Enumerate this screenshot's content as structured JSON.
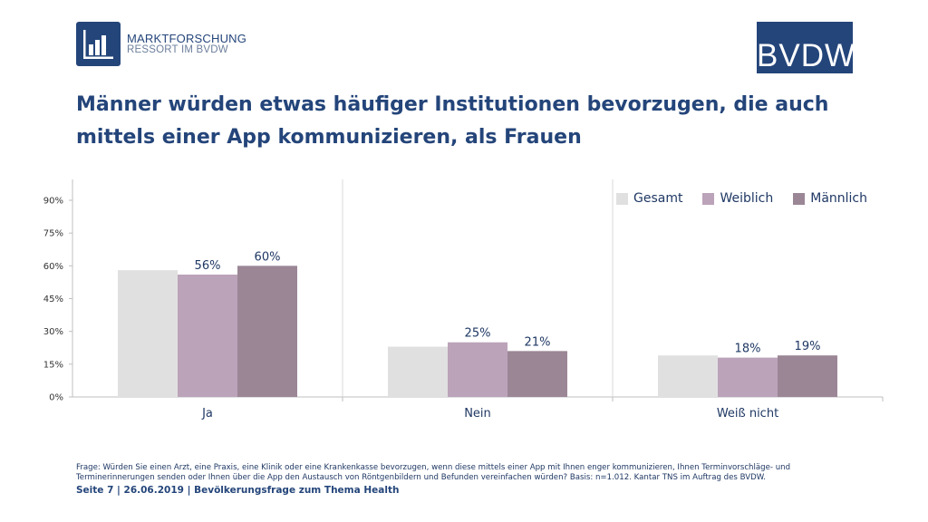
{
  "header": {
    "logo_left_line1": "MARKTFORSCHUNG",
    "logo_left_line2": "RESSORT IM BVDW",
    "logo_right": "BVDW",
    "title": "Männer würden etwas häufiger Institutionen bevorzugen, die auch mittels einer App kommunizieren, als Frauen"
  },
  "chart_data": {
    "type": "bar",
    "title": "",
    "xlabel": "",
    "ylabel": "",
    "categories": [
      "Ja",
      "Nein",
      "Weiß nicht"
    ],
    "ylim": [
      0,
      90
    ],
    "yticks": [
      "0%",
      "15%",
      "30%",
      "45%",
      "60%",
      "75%",
      "90%"
    ],
    "legend_position": "top-right",
    "series": [
      {
        "name": "Gesamt",
        "color": "#e0e0e0",
        "values": [
          58,
          23,
          19
        ],
        "labels": [
          "",
          "",
          ""
        ]
      },
      {
        "name": "Weiblich",
        "color": "#bba3b9",
        "values": [
          56,
          25,
          18
        ],
        "labels": [
          "56%",
          "25%",
          "18%"
        ]
      },
      {
        "name": "Männlich",
        "color": "#9b8696",
        "values": [
          60,
          21,
          19
        ],
        "labels": [
          "60%",
          "21%",
          "19%"
        ]
      }
    ]
  },
  "footnote": "Frage: Würden Sie einen Arzt, eine Praxis, eine Klinik oder eine Krankenkasse bevorzugen, wenn diese mittels einer App mit Ihnen enger kommunizieren, Ihnen Terminvorschläge- und Terminerinnerungen senden oder Ihnen über die App den Austausch von Röntgenbildern und Befunden vereinfachen würden? Basis: n=1.012. Kantar TNS im Auftrag des BVDW.",
  "footer": "Seite 7 | 26.06.2019 | Bevölkerungsfrage zum Thema Health"
}
